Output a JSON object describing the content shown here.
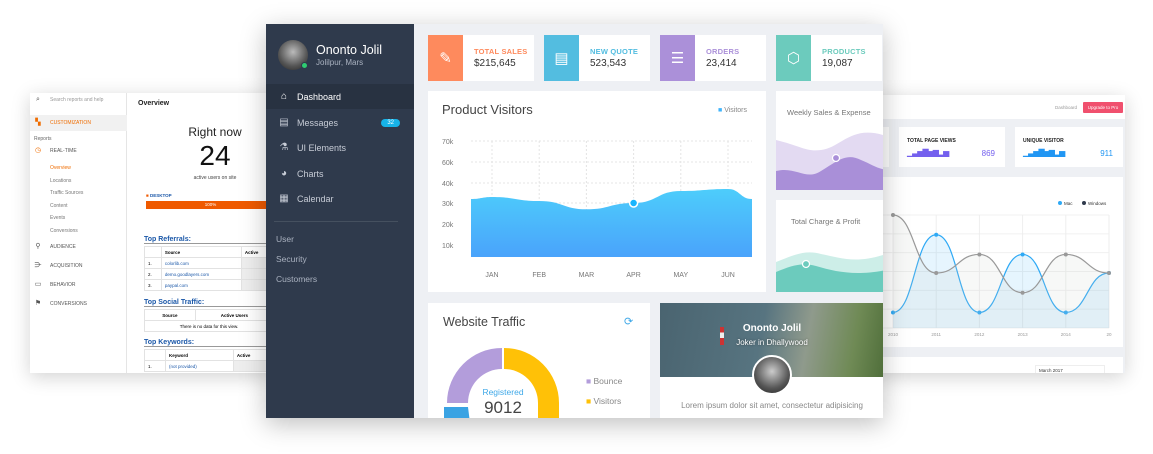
{
  "analytics": {
    "search_placeholder": "Search reports and help",
    "customization": "CUSTOMIZATION",
    "reports": "Reports",
    "nav": [
      {
        "label": "REAL-TIME",
        "icon": "clock-icon"
      },
      {
        "label": "AUDIENCE",
        "icon": "person-icon"
      },
      {
        "label": "ACQUISITION",
        "icon": "acquisition-icon"
      },
      {
        "label": "BEHAVIOR",
        "icon": "behavior-icon"
      },
      {
        "label": "CONVERSIONS",
        "icon": "flag-icon"
      }
    ],
    "realtime_sub": [
      "Overview",
      "Locations",
      "Traffic Sources",
      "Content",
      "Events",
      "Conversions"
    ],
    "title": "Overview",
    "right_now": "Right now",
    "active_count": "24",
    "active_label": "active users on site",
    "device": "DESKTOP",
    "device_pct": "100%",
    "referrals": {
      "title": "Top Referrals:",
      "headers": [
        "Source",
        "Active"
      ],
      "rows": [
        [
          "1.",
          "colorlib.com"
        ],
        [
          "2.",
          "demo.goodlayers.com"
        ],
        [
          "3.",
          "paypal.com"
        ]
      ]
    },
    "social": {
      "title": "Top Social Traffic:",
      "headers": [
        "Source",
        "Active Users"
      ],
      "empty": "There is no data for this view."
    },
    "keywords": {
      "title": "Top Keywords:",
      "headers": [
        "Keyword",
        "Active"
      ],
      "rows": [
        [
          "1.",
          "(not provided)"
        ]
      ]
    }
  },
  "dashboard": {
    "user": {
      "name": "Ononto Jolil",
      "location": "Jolilpur, Mars",
      "status_color": "#2ecc71"
    },
    "nav": [
      {
        "label": "Dashboard",
        "icon": "home-icon",
        "active": true
      },
      {
        "label": "Messages",
        "icon": "message-icon",
        "badge": "32"
      },
      {
        "label": "UI Elements",
        "icon": "flask-icon"
      },
      {
        "label": "Charts",
        "icon": "pie-chart-icon"
      },
      {
        "label": "Calendar",
        "icon": "calendar-icon"
      }
    ],
    "secondary_nav": [
      "User",
      "Security",
      "Customers"
    ],
    "stats": [
      {
        "label": "TOTAL SALES",
        "value": "$215,645",
        "color": "#fe8a5d",
        "icon": "ticket-icon"
      },
      {
        "label": "NEW QUOTE",
        "value": "523,543",
        "color": "#53bde0",
        "icon": "document-icon"
      },
      {
        "label": "ORDERS",
        "value": "23,414",
        "color": "#ab90d9",
        "icon": "database-icon"
      },
      {
        "label": "PRODUCTS",
        "value": "19,087",
        "color": "#6ccbbd",
        "icon": "box-icon"
      }
    ],
    "product_visitors": {
      "title": "Product Visitors",
      "legend": "Visitors"
    },
    "weekly_sales": {
      "title": "Weekly Sales & Expense"
    },
    "total_charge": {
      "title": "Total Charge & Profit"
    },
    "website_traffic": {
      "title": "Website Traffic",
      "center_label": "Registered",
      "center_value": "9012",
      "legend": [
        {
          "label": "Bounce",
          "color": "#b39ddb"
        },
        {
          "label": "Visitors",
          "color": "#ffc107"
        }
      ]
    },
    "profile": {
      "name": "Ononto Jolil",
      "subtitle": "Joker in Dhallywood",
      "text": "Lorem ipsum dolor sit amet, consectetur adipisicing"
    }
  },
  "admin": {
    "breadcrumb": "Dashboard",
    "upgrade": "Upgrade to Pro",
    "stats": [
      {
        "label": "TOTAL PAGE VIEWS",
        "value": "869",
        "color": "#7460ee"
      },
      {
        "label": "UNIQUE VISITOR",
        "value": "911",
        "color": "#2196f3"
      }
    ],
    "date_select": "March 2017"
  },
  "chart_data": [
    {
      "type": "area",
      "title": "Product Visitors",
      "categories": [
        "JAN",
        "FEB",
        "MAR",
        "APR",
        "MAY",
        "JUN"
      ],
      "y_ticks": [
        "70k",
        "60k",
        "40k",
        "30k",
        "20k",
        "10k"
      ],
      "series": [
        {
          "name": "Visitors",
          "values": [
            33,
            31,
            27,
            30,
            36,
            37
          ],
          "color": "#40b4fb"
        }
      ],
      "highlight": "APR",
      "legend": "top-right",
      "grid": true
    },
    {
      "type": "line",
      "legend": "top-right",
      "grid": true,
      "categories": [
        "2010",
        "2011",
        "2012",
        "2013",
        "2014",
        "20"
      ],
      "ylim": [
        0,
        100
      ],
      "series": [
        {
          "name": "Mac",
          "values": [
            16,
            83,
            16,
            66,
            16,
            50
          ],
          "color": "#2ea9f5"
        },
        {
          "name": "Windows",
          "values": [
            100,
            50,
            66,
            33,
            66,
            50
          ],
          "color": "#2f3a4c"
        }
      ]
    }
  ]
}
